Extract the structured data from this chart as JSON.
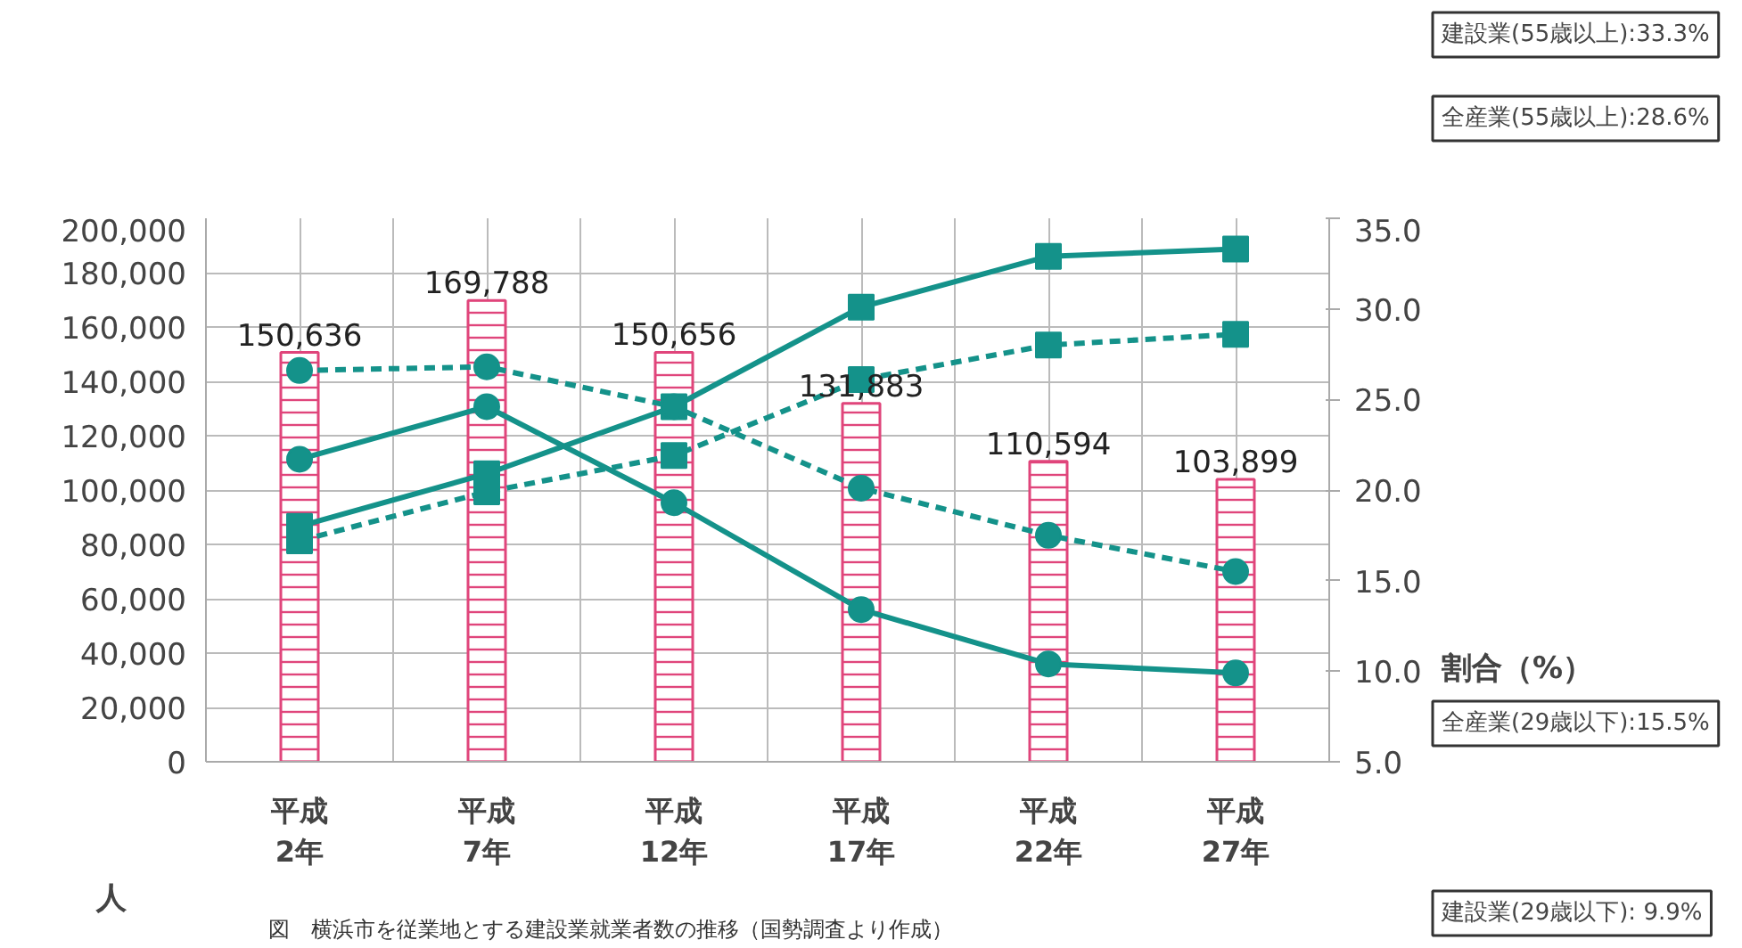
{
  "chart_data": {
    "type": "bar",
    "title": "図　横浜市を従業地とする建設業就業者数の推移（国勢調査より作成）",
    "categories": [
      "平成2年",
      "平成7年",
      "平成12年",
      "平成17年",
      "平成22年",
      "平成27年"
    ],
    "ylabel": "人",
    "y2label": "割合（%）",
    "values": [
      150636,
      169788,
      150656,
      131883,
      110594,
      103899
    ],
    "color": "#e0457b",
    "value_labels": [
      "150,636",
      "169,788",
      "150,656",
      "131,883",
      "110,594",
      "103,899"
    ],
    "series": [
      {
        "type": "line",
        "axis": "y2",
        "color": "#14928a",
        "marker": "square",
        "line_style": "solid",
        "values": [
          18.0,
          20.9,
          24.6,
          30.1,
          32.9,
          33.3
        ]
      },
      {
        "type": "line",
        "axis": "y2",
        "color": "#14928a",
        "marker": "square",
        "line_style": "dashed",
        "values": [
          17.2,
          19.9,
          21.9,
          26.1,
          28.0,
          28.6
        ]
      },
      {
        "type": "line",
        "axis": "y2",
        "color": "#14928a",
        "marker": "circle",
        "line_style": "dashed",
        "values": [
          26.6,
          26.8,
          24.6,
          20.1,
          17.5,
          15.5
        ]
      },
      {
        "type": "line",
        "axis": "y2",
        "color": "#14928a",
        "marker": "circle",
        "line_style": "solid",
        "values": [
          21.7,
          24.6,
          19.3,
          13.4,
          10.4,
          9.9
        ]
      }
    ],
    "ylim": [
      0,
      200000
    ],
    "yticks": [
      0,
      {
        "value": 20000,
        "label": "20,000"
      },
      {
        "value": 40000,
        "label": "40,000"
      },
      {
        "value": 60000,
        "label": "60,000"
      },
      {
        "value": 80000,
        "label": "80,000"
      },
      {
        "value": 100000,
        "label": "100,000"
      },
      {
        "value": 120000,
        "label": "120,000"
      },
      {
        "value": 140000,
        "label": "140,000"
      },
      {
        "value": 160000,
        "label": "160,000"
      },
      {
        "value": 180000,
        "label": "180,000"
      },
      {
        "value": 200000,
        "label": "200,000"
      }
    ],
    "y2lim": [
      5,
      35
    ],
    "y2ticks": [
      {
        "value": 5,
        "label": "5.0"
      },
      {
        "value": 10,
        "label": "10.0"
      },
      {
        "value": 15,
        "label": "15.0"
      },
      {
        "value": 20,
        "label": "20.0"
      },
      {
        "value": 25,
        "label": "25.0"
      },
      {
        "value": 30,
        "label": "30.0"
      },
      {
        "value": 35,
        "label": "35.0"
      }
    ],
    "grid": true,
    "annotations": [
      "建設業(55歳以上):33.3%",
      "全産業(55歳以上):28.6%",
      "全産業(29歳以下):15.5%",
      "建設業(29歳以下): 9.9%"
    ]
  }
}
